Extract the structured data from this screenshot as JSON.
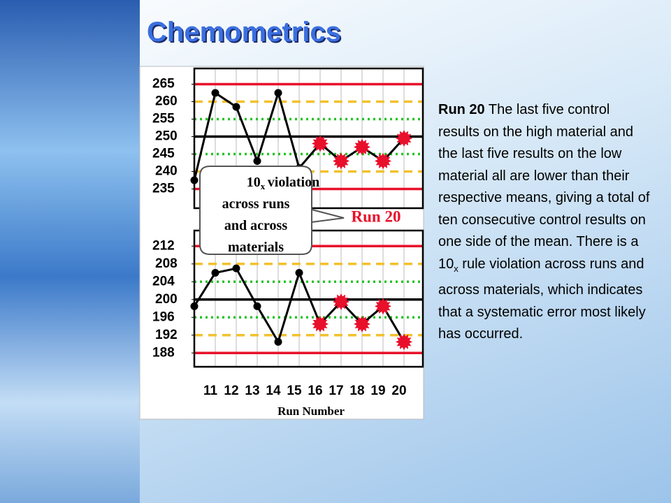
{
  "title": "Chemometrics",
  "body": {
    "lead": "Run 20",
    "text1": " The last five control results on the high material and the last five results on the low material all are lower than their respective means, giving a total of ten consecutive control results on one side of the mean. There is a 10",
    "sub": "x",
    "text2": " rule violation across runs and across materials, which indicates that a systematic error most likely has occurred."
  },
  "chart_data": [
    {
      "type": "line",
      "values": [
        237.5,
        262.5,
        258.5,
        243,
        262.5,
        241,
        248,
        243,
        247,
        243,
        249.5
      ],
      "point_colors": [
        "#000000",
        "#000000",
        "#000000",
        "#000000",
        "#000000",
        "#000000",
        "#e8102a",
        "#e8102a",
        "#e8102a",
        "#e8102a",
        "#e8102a"
      ],
      "ylim": [
        229.5,
        269.5
      ],
      "yticks": [
        265,
        260,
        255,
        250,
        245,
        240,
        235
      ],
      "reference_lines": [
        {
          "value": 265,
          "color": "#e8102a",
          "style": "solid"
        },
        {
          "value": 260,
          "color": "#f2c12e",
          "style": "dashed"
        },
        {
          "value": 255,
          "color": "#22c422",
          "style": "dotted"
        },
        {
          "value": 250,
          "color": "#000000",
          "style": "solid"
        },
        {
          "value": 245,
          "color": "#22c422",
          "style": "dotted"
        },
        {
          "value": 240,
          "color": "#f2c12e",
          "style": "dashed"
        },
        {
          "value": 235,
          "color": "#e8102a",
          "style": "solid"
        }
      ]
    },
    {
      "type": "line",
      "xlabel": "Run Number",
      "categories": [
        null,
        "11",
        "12",
        "13",
        "14",
        "15",
        "16",
        "17",
        "18",
        "19",
        "20"
      ],
      "values": [
        198.5,
        206,
        207,
        198.5,
        190.5,
        206,
        194.5,
        199.5,
        194.5,
        198.5,
        190.5
      ],
      "point_colors": [
        "#000000",
        "#000000",
        "#000000",
        "#000000",
        "#000000",
        "#000000",
        "#e8102a",
        "#e8102a",
        "#e8102a",
        "#e8102a",
        "#e8102a"
      ],
      "ylim": [
        184.9,
        215.5
      ],
      "yticks": [
        212,
        208,
        204,
        200,
        196,
        192,
        188
      ],
      "reference_lines": [
        {
          "value": 212,
          "color": "#e8102a",
          "style": "solid"
        },
        {
          "value": 208,
          "color": "#f2c12e",
          "style": "dashed"
        },
        {
          "value": 204,
          "color": "#22c422",
          "style": "dotted"
        },
        {
          "value": 200,
          "color": "#000000",
          "style": "solid"
        },
        {
          "value": 196,
          "color": "#22c422",
          "style": "dotted"
        },
        {
          "value": 192,
          "color": "#f2c12e",
          "style": "dashed"
        },
        {
          "value": 188,
          "color": "#e8102a",
          "style": "solid"
        }
      ]
    }
  ],
  "annotations": {
    "callout_main": "10",
    "callout_sub": "x",
    "callout_rest": " violation across runs and across materials",
    "run_label": "Run 20"
  }
}
